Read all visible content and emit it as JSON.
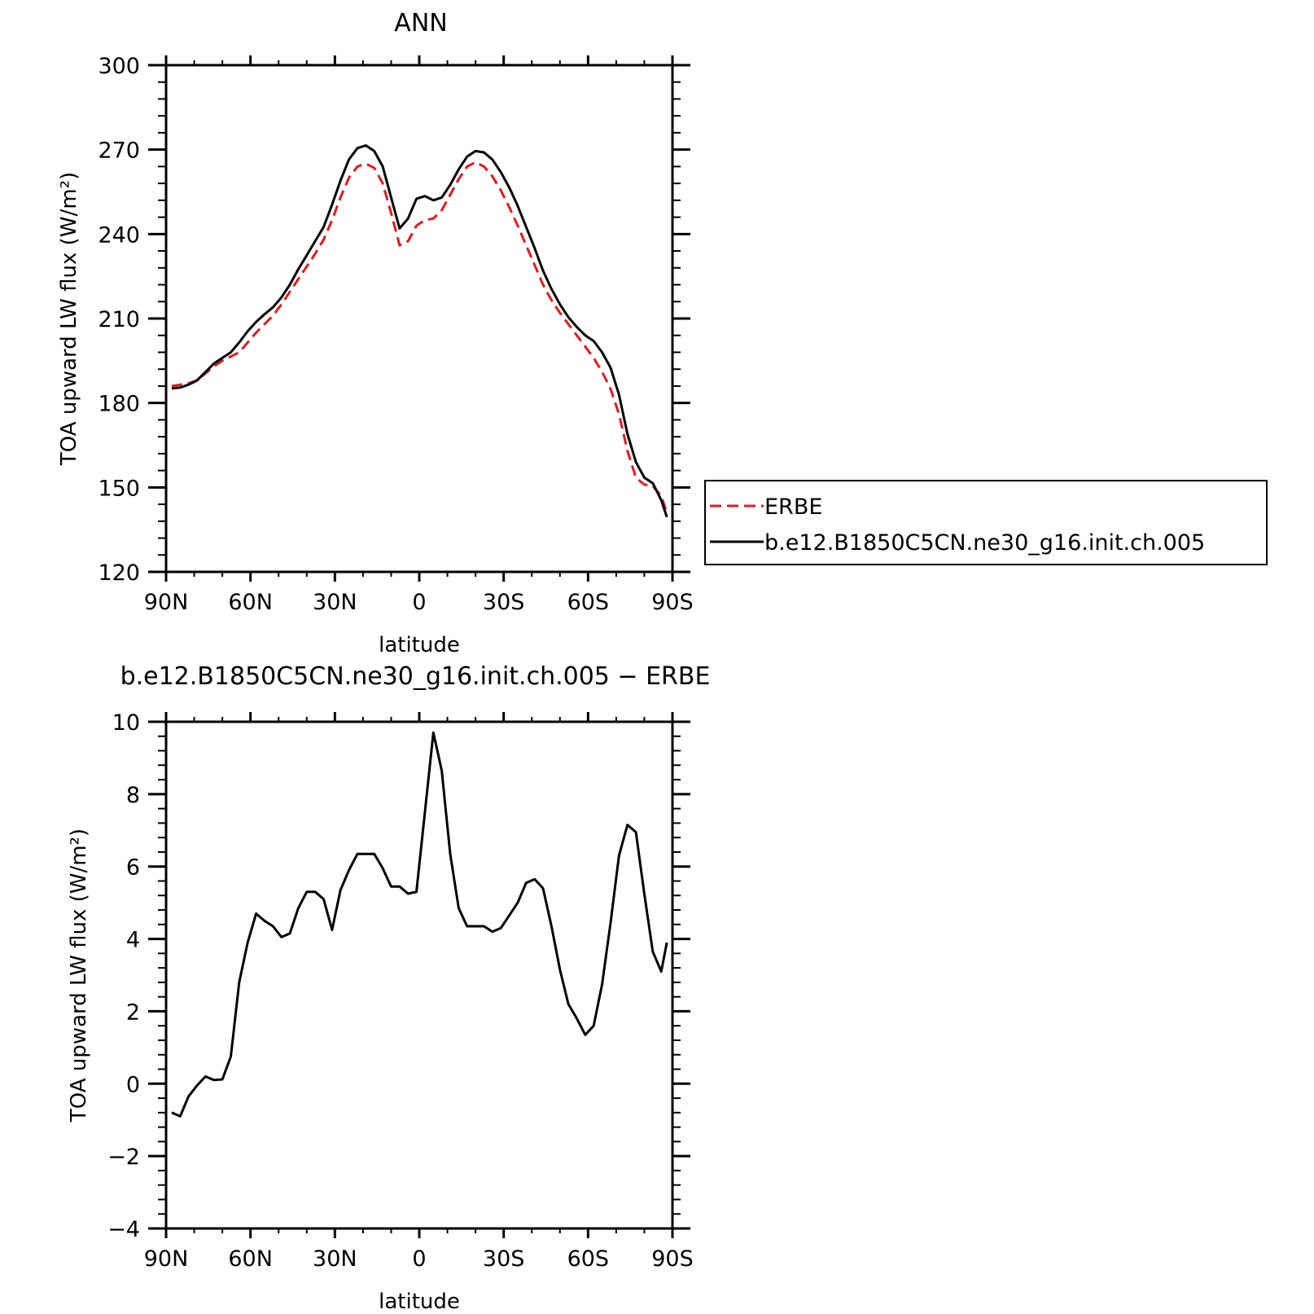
{
  "chart_data": [
    {
      "type": "line",
      "title": "ANN",
      "xlabel": "latitude",
      "ylabel": "TOA upward LW flux (W/m²)",
      "xlim": [
        90,
        -90
      ],
      "ylim": [
        120,
        300
      ],
      "xticks": [
        90,
        60,
        30,
        0,
        -30,
        -60,
        -90
      ],
      "xtick_labels": [
        "90N",
        "60N",
        "30N",
        "0",
        "30S",
        "60S",
        "90S"
      ],
      "yticks": [
        120,
        150,
        180,
        210,
        240,
        270,
        300
      ],
      "ytick_labels": [
        "120",
        "150",
        "180",
        "210",
        "240",
        "270",
        "300"
      ],
      "grid": false,
      "legend_position": "right",
      "series": [
        {
          "name": "ERBE",
          "color": "#e41a1c",
          "dash": "dashed",
          "x": [
            88,
            85,
            82,
            79,
            76,
            73,
            70,
            67,
            64,
            61,
            58,
            55,
            52,
            49,
            46,
            43,
            40,
            37,
            34,
            31,
            28,
            25,
            22,
            19,
            16,
            13,
            10,
            7,
            4,
            1,
            -2,
            -5,
            -8,
            -11,
            -14,
            -17,
            -20,
            -23,
            -26,
            -29,
            -32,
            -35,
            -38,
            -41,
            -44,
            -47,
            -50,
            -53,
            -56,
            -59,
            -62,
            -65,
            -68,
            -71,
            -74,
            -77,
            -80,
            -83,
            -86,
            -88
          ],
          "y": [
            186,
            186.5,
            187,
            188,
            190.5,
            193,
            195,
            196.5,
            198,
            201.5,
            205,
            208,
            211,
            215,
            219.5,
            224,
            228.5,
            233,
            238,
            245,
            253,
            260,
            264,
            265,
            263.5,
            258,
            247.5,
            236,
            237.5,
            243,
            245,
            245.5,
            248.5,
            254,
            259.5,
            264,
            265.5,
            264,
            260.5,
            255.5,
            249.5,
            243,
            236,
            229,
            222,
            216.5,
            212,
            208,
            204,
            200,
            196,
            191,
            185,
            176,
            163,
            153.5,
            151,
            150.5,
            147,
            141
          ]
        },
        {
          "name": "b.e12.B1850C5CN.ne30_g16.init.ch.005",
          "color": "#000000",
          "dash": "solid",
          "x": [
            88,
            85,
            82,
            79,
            76,
            73,
            70,
            67,
            64,
            61,
            58,
            55,
            52,
            49,
            46,
            43,
            40,
            37,
            34,
            31,
            28,
            25,
            22,
            19,
            16,
            13,
            10,
            7,
            4,
            1,
            -2,
            -5,
            -8,
            -11,
            -14,
            -17,
            -20,
            -23,
            -26,
            -29,
            -32,
            -35,
            -38,
            -41,
            -44,
            -47,
            -50,
            -53,
            -56,
            -59,
            -62,
            -65,
            -68,
            -71,
            -74,
            -77,
            -80,
            -83,
            -86,
            -88
          ],
          "y": [
            185.2,
            185.5,
            186.5,
            188,
            191,
            194,
            196,
            198,
            201.5,
            205.5,
            208.8,
            211.5,
            214,
            217.5,
            222,
            227.5,
            232.5,
            237.5,
            242.5,
            250.5,
            259,
            266.5,
            270.5,
            271.5,
            269.5,
            264,
            253,
            242,
            245.5,
            252.5,
            253.5,
            252,
            253,
            257.5,
            263,
            267.5,
            269.5,
            269,
            266.5,
            262,
            256.5,
            250,
            242.5,
            235,
            227,
            220.5,
            215,
            210.5,
            207,
            204,
            202,
            198,
            192.5,
            183,
            169,
            159,
            153.5,
            151.5,
            145.5,
            139.5
          ]
        }
      ]
    },
    {
      "type": "line",
      "title": "b.e12.B1850C5CN.ne30_g16.init.ch.005 − ERBE",
      "xlabel": "latitude",
      "ylabel": "TOA upward LW flux (W/m²)",
      "xlim": [
        90,
        -90
      ],
      "ylim": [
        -4,
        10
      ],
      "xticks": [
        90,
        60,
        30,
        0,
        -30,
        -60,
        -90
      ],
      "xtick_labels": [
        "90N",
        "60N",
        "30N",
        "0",
        "30S",
        "60S",
        "90S"
      ],
      "yticks": [
        -4,
        -2,
        0,
        2,
        4,
        6,
        8,
        10
      ],
      "ytick_labels": [
        "−4",
        "−2",
        "0",
        "2",
        "4",
        "6",
        "8",
        "10"
      ],
      "grid": false,
      "series": [
        {
          "color": "#000000",
          "dash": "solid",
          "x": [
            88,
            85,
            82,
            79,
            76,
            73,
            70,
            67,
            64,
            61,
            58,
            55,
            52,
            49,
            46,
            43,
            40,
            37,
            34,
            31,
            28,
            25,
            22,
            19,
            16,
            13,
            10,
            7,
            4,
            1,
            -2,
            -5,
            -8,
            -11,
            -14,
            -17,
            -20,
            -23,
            -26,
            -29,
            -32,
            -35,
            -38,
            -41,
            -44,
            -47,
            -50,
            -53,
            -56,
            -59,
            -62,
            -65,
            -68,
            -71,
            -74,
            -77,
            -80,
            -83,
            -86,
            -88
          ],
          "y": [
            -0.8,
            -0.9,
            -0.35,
            -0.05,
            0.2,
            0.1,
            0.12,
            0.75,
            2.8,
            3.9,
            4.7,
            4.5,
            4.35,
            4.05,
            4.15,
            4.85,
            5.3,
            5.3,
            5.1,
            4.25,
            5.35,
            5.9,
            6.35,
            6.35,
            6.35,
            5.95,
            5.45,
            5.45,
            5.25,
            5.3,
            7.5,
            9.7,
            8.65,
            6.35,
            4.85,
            4.35,
            4.35,
            4.35,
            4.2,
            4.3,
            4.65,
            5.0,
            5.55,
            5.65,
            5.4,
            4.35,
            3.15,
            2.2,
            1.8,
            1.35,
            1.6,
            2.75,
            4.45,
            6.3,
            7.15,
            6.95,
            5.25,
            3.65,
            3.1,
            3.9
          ]
        }
      ]
    }
  ]
}
